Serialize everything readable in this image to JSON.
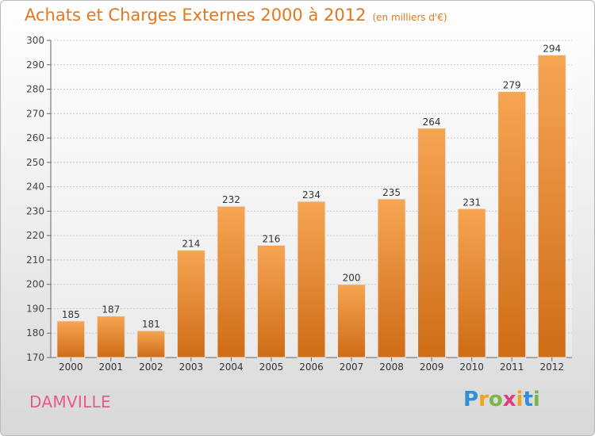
{
  "header": {
    "title": "Achats et Charges Externes 2000 à 2012",
    "unit": "(en milliers d'€)"
  },
  "place": "DAMVILLE",
  "logo": {
    "letters": [
      "P",
      "r",
      "o",
      "x",
      "i",
      "t",
      "i"
    ],
    "colors": [
      "#2f8fd8",
      "#f2a21e",
      "#7ab648",
      "#e03e7b",
      "#f2a21e",
      "#2f8fd8",
      "#7ab648"
    ]
  },
  "chart_data": {
    "type": "bar",
    "title": "Achats et Charges Externes 2000 à 2012",
    "xlabel": "",
    "ylabel": "",
    "categories": [
      "2000",
      "2001",
      "2002",
      "2003",
      "2004",
      "2005",
      "2006",
      "2007",
      "2008",
      "2009",
      "2010",
      "2011",
      "2012"
    ],
    "values": [
      185,
      187,
      181,
      214,
      232,
      216,
      234,
      200,
      235,
      264,
      231,
      279,
      294
    ],
    "ylim": [
      170,
      300
    ],
    "yticks": [
      170,
      180,
      190,
      200,
      210,
      220,
      230,
      240,
      250,
      260,
      270,
      280,
      290,
      300
    ],
    "grid": true,
    "bar_color_top": "#f6a553",
    "bar_color_bottom": "#cf6c16"
  }
}
